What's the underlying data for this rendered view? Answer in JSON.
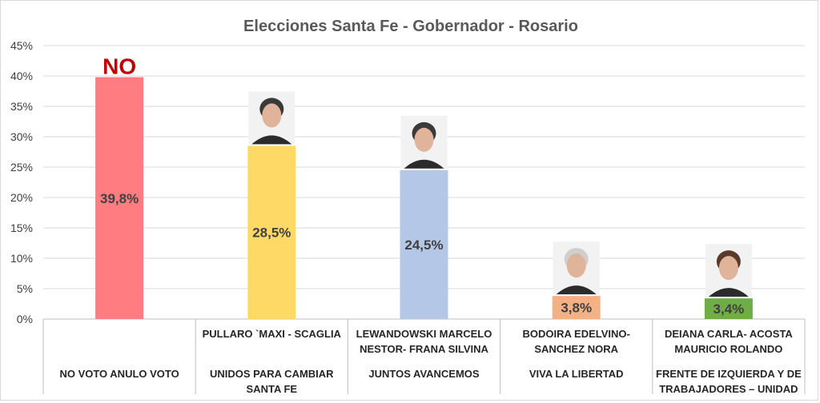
{
  "chart_data": {
    "type": "bar",
    "title": "Elecciones Santa Fe - Gobernador - Rosario",
    "xlabel": "",
    "ylabel": "",
    "ylim": [
      0,
      45
    ],
    "y_ticks": [
      "0%",
      "5%",
      "10%",
      "15%",
      "20%",
      "25%",
      "30%",
      "35%",
      "40%",
      "45%"
    ],
    "grid": true,
    "categories": [
      {
        "candidate": [],
        "party": [
          "NO VOTO ANULO VOTO"
        ]
      },
      {
        "candidate": [
          "PULLARO `MAXI -  SCAGLIA"
        ],
        "party": [
          "UNIDOS PARA CAMBIAR",
          "SANTA FE"
        ]
      },
      {
        "candidate": [
          "LEWANDOWSKI MARCELO",
          "NESTOR- FRANA SILVINA"
        ],
        "party": [
          "JUNTOS AVANCEMOS"
        ]
      },
      {
        "candidate": [
          "BODOIRA EDELVINO-",
          "SANCHEZ NORA"
        ],
        "party": [
          "VIVA LA LIBERTAD"
        ]
      },
      {
        "candidate": [
          "DEIANA CARLA-  ACOSTA",
          "MAURICIO ROLANDO"
        ],
        "party": [
          "FRENTE DE IZQUIERDA Y DE",
          "TRABAJADORES – UNIDAD"
        ]
      }
    ],
    "values": [
      39.8,
      28.5,
      24.5,
      3.8,
      3.4
    ],
    "data_labels": [
      "39,8%",
      "28,5%",
      "24,5%",
      "3,8%",
      "3,4%"
    ],
    "colors": [
      "#ff7c80",
      "#ffd966",
      "#b4c7e7",
      "#f4b183",
      "#70ad47"
    ],
    "annotations": [
      {
        "bar": 0,
        "text": "NO",
        "color": "#c00000"
      }
    ],
    "portraits": [
      1,
      2,
      3,
      4
    ]
  }
}
